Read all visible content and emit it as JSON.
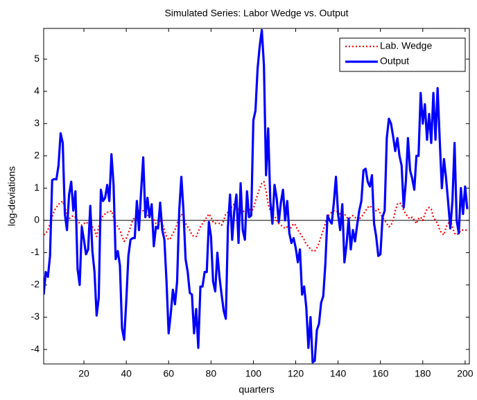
{
  "chart_data": {
    "type": "line",
    "title": "Simulated Series: Labor Wedge vs. Output",
    "xlabel": "quarters",
    "ylabel": "log-deviations",
    "x": [
      1,
      2,
      3,
      4,
      5,
      6,
      7,
      8,
      9,
      10,
      11,
      12,
      13,
      14,
      15,
      16,
      17,
      18,
      19,
      20,
      21,
      22,
      23,
      24,
      25,
      26,
      27,
      28,
      29,
      30,
      31,
      32,
      33,
      34,
      35,
      36,
      37,
      38,
      39,
      40,
      41,
      42,
      43,
      44,
      45,
      46,
      47,
      48,
      49,
      50,
      51,
      52,
      53,
      54,
      55,
      56,
      57,
      58,
      59,
      60,
      61,
      62,
      63,
      64,
      65,
      66,
      67,
      68,
      69,
      70,
      71,
      72,
      73,
      74,
      75,
      76,
      77,
      78,
      79,
      80,
      81,
      82,
      83,
      84,
      85,
      86,
      87,
      88,
      89,
      90,
      91,
      92,
      93,
      94,
      95,
      96,
      97,
      98,
      99,
      100,
      101,
      102,
      103,
      104,
      105,
      106,
      107,
      108,
      109,
      110,
      111,
      112,
      113,
      114,
      115,
      116,
      117,
      118,
      119,
      120,
      121,
      122,
      123,
      124,
      125,
      126,
      127,
      128,
      129,
      130,
      131,
      132,
      133,
      134,
      135,
      136,
      137,
      138,
      139,
      140,
      141,
      142,
      143,
      144,
      145,
      146,
      147,
      148,
      149,
      150,
      151,
      152,
      153,
      154,
      155,
      156,
      157,
      158,
      159,
      160,
      161,
      162,
      163,
      164,
      165,
      166,
      167,
      168,
      169,
      170,
      171,
      172,
      173,
      174,
      175,
      176,
      177,
      178,
      179,
      180,
      181,
      182,
      183,
      184,
      185,
      186,
      187,
      188,
      189,
      190,
      191,
      192,
      193,
      194,
      195,
      196,
      197,
      198,
      199,
      200,
      201
    ],
    "series": [
      {
        "name": "Lab. Wedge",
        "color": "#ff0000",
        "dash": "dotted",
        "values": [
          -0.45,
          -0.4,
          -0.3,
          -0.1,
          0.1,
          0.3,
          0.4,
          0.5,
          0.55,
          0.6,
          0.4,
          0.2,
          0.05,
          0.1,
          0.15,
          0.1,
          0.0,
          -0.1,
          -0.15,
          -0.1,
          -0.05,
          -0.1,
          -0.15,
          -0.2,
          -0.3,
          -0.5,
          -0.2,
          0.0,
          0.15,
          0.2,
          0.25,
          0.25,
          0.3,
          0.1,
          -0.1,
          -0.2,
          -0.3,
          -0.5,
          -0.65,
          -0.55,
          -0.4,
          -0.2,
          0.0,
          0.1,
          0.15,
          0.3,
          0.3,
          0.3,
          0.2,
          0.15,
          0.2,
          0.1,
          0.05,
          -0.1,
          -0.2,
          0.0,
          -0.1,
          -0.3,
          -0.5,
          -0.6,
          -0.55,
          -0.4,
          -0.3,
          -0.1,
          0.1,
          0.2,
          0.1,
          -0.1,
          -0.2,
          -0.3,
          -0.45,
          -0.5,
          -0.5,
          -0.35,
          -0.2,
          -0.1,
          0.0,
          0.1,
          0.2,
          0.1,
          -0.05,
          -0.1,
          0.0,
          -0.1,
          -0.15,
          0.0,
          0.2,
          0.25,
          0.3,
          0.45,
          0.5,
          0.45,
          0.3,
          0.2,
          0.3,
          0.25,
          0.2,
          0.35,
          0.3,
          0.35,
          0.6,
          0.8,
          1.0,
          1.15,
          1.2,
          0.9,
          0.5,
          0.3,
          0.2,
          0.15,
          0.0,
          -0.1,
          -0.15,
          -0.2,
          -0.25,
          -0.2,
          -0.3,
          -0.2,
          -0.1,
          -0.15,
          -0.3,
          -0.4,
          -0.5,
          -0.6,
          -0.75,
          -0.8,
          -0.9,
          -0.95,
          -0.95,
          -0.85,
          -0.7,
          -0.5,
          -0.3,
          -0.1,
          0.1,
          0.2,
          0.25,
          0.3,
          0.3,
          0.25,
          0.2,
          0.25,
          0.2,
          0.1,
          0.05,
          0.1,
          0.15,
          0.1,
          0.0,
          0.05,
          0.1,
          0.2,
          0.3,
          0.4,
          0.45,
          0.4,
          0.3,
          0.3,
          0.35,
          0.2,
          0.1,
          0.0,
          -0.1,
          -0.2,
          -0.15,
          0.0,
          0.3,
          0.5,
          0.55,
          0.5,
          0.3,
          0.2,
          0.1,
          0.05,
          0.1,
          0.0,
          -0.1,
          0.05,
          0.1,
          0.0,
          0.2,
          0.35,
          0.4,
          0.35,
          0.1,
          0.0,
          -0.1,
          -0.3,
          -0.4,
          -0.45,
          -0.2,
          -0.1,
          0.0,
          -0.2,
          -0.4,
          -0.45,
          -0.4,
          -0.3,
          -0.3,
          -0.3,
          -0.3
        ]
      },
      {
        "name": "Output",
        "color": "#0000ff",
        "dash": "solid",
        "values": [
          -2.3,
          -1.6,
          -1.75,
          -1.1,
          1.25,
          1.28,
          1.27,
          1.7,
          2.7,
          2.4,
          0.2,
          -0.3,
          0.8,
          1.2,
          0.3,
          0.9,
          -1.5,
          -2.0,
          -0.2,
          -0.6,
          -1.05,
          -0.9,
          0.45,
          -0.95,
          -1.6,
          -2.95,
          -2.4,
          0.95,
          0.6,
          0.7,
          1.1,
          0.6,
          2.05,
          1.1,
          -1.2,
          -0.95,
          -1.4,
          -3.35,
          -3.7,
          -2.5,
          -1.1,
          -0.6,
          -0.55,
          -0.55,
          0.6,
          -0.3,
          0.9,
          1.95,
          0.1,
          0.7,
          0.1,
          0.5,
          -0.8,
          -0.2,
          -0.25,
          0.55,
          -0.3,
          -0.6,
          -1.9,
          -3.5,
          -2.9,
          -2.15,
          -2.6,
          -1.9,
          0.3,
          1.35,
          0.3,
          -1.2,
          -1.6,
          -2.25,
          -2.3,
          -3.5,
          -2.75,
          -3.95,
          -2.05,
          -2.05,
          -1.6,
          -1.6,
          -0.05,
          -0.5,
          -1.9,
          -2.2,
          -1.0,
          -1.75,
          -2.3,
          -2.8,
          -3.05,
          -0.2,
          0.8,
          -0.6,
          0.3,
          0.8,
          -0.7,
          1.15,
          -0.3,
          -0.6,
          0.9,
          0.1,
          0.15,
          3.1,
          3.4,
          4.7,
          5.4,
          5.9,
          4.8,
          1.4,
          2.85,
          0.6,
          -0.1,
          1.1,
          0.7,
          -0.05,
          0.55,
          0.95,
          0.0,
          0.6,
          -0.4,
          -0.7,
          -0.55,
          -0.85,
          -1.3,
          -0.9,
          -2.3,
          -2.05,
          -2.7,
          -3.95,
          -3.0,
          -4.4,
          -4.35,
          -3.4,
          -3.2,
          -2.55,
          -2.35,
          -1.35,
          0.15,
          0.0,
          -0.1,
          0.55,
          1.35,
          0.2,
          -0.3,
          0.5,
          -1.3,
          -0.75,
          0.05,
          -0.9,
          -0.3,
          -0.65,
          -0.15,
          0.3,
          0.6,
          1.55,
          1.6,
          1.2,
          1.05,
          1.4,
          -0.1,
          -0.5,
          -1.1,
          -1.05,
          0.1,
          0.3,
          2.55,
          3.15,
          3.0,
          2.6,
          2.15,
          2.55,
          2.0,
          1.7,
          0.4,
          1.2,
          2.55,
          1.55,
          1.3,
          0.95,
          2.0,
          2.0,
          3.95,
          3.0,
          3.6,
          2.5,
          3.3,
          2.4,
          3.95,
          2.5,
          4.1,
          2.5,
          1.0,
          1.9,
          1.3,
          0.55,
          -0.25,
          0.6,
          2.4,
          0.0,
          -0.4,
          1.0,
          0.2,
          1.05,
          0.35
        ]
      }
    ],
    "xlim": [
      1,
      202
    ],
    "ylim": [
      -4.45,
      5.95
    ],
    "xticks": [
      20,
      40,
      60,
      80,
      100,
      120,
      140,
      160,
      180,
      200
    ],
    "yticks": [
      -4,
      -3,
      -2,
      -1,
      0,
      1,
      2,
      3,
      4,
      5
    ],
    "zero_line": true,
    "legend": "upper right",
    "grid": false
  }
}
